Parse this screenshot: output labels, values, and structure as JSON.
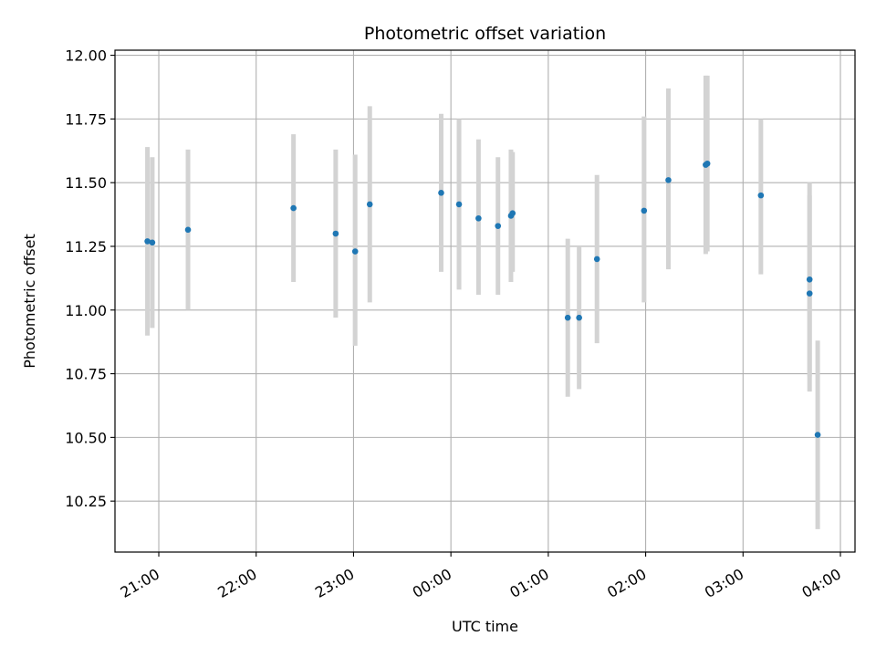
{
  "chart_data": {
    "type": "scatter",
    "title": "Photometric offset variation",
    "xlabel": "UTC time",
    "ylabel": "Photometric offset",
    "x_axis": "time",
    "x_range": [
      "20:33",
      "04:09"
    ],
    "ylim": [
      10.05,
      12.02
    ],
    "yticks": [
      10.25,
      10.5,
      10.75,
      11.0,
      11.25,
      11.5,
      11.75,
      12.0
    ],
    "ytick_labels": [
      "10.25",
      "10.50",
      "10.75",
      "11.00",
      "11.25",
      "11.50",
      "11.75",
      "12.00"
    ],
    "xticks": [
      "21:00",
      "22:00",
      "23:00",
      "00:00",
      "01:00",
      "02:00",
      "03:00",
      "04:00"
    ],
    "grid": true,
    "colors": {
      "points": "#1f77b4",
      "errorbars": "#d3d3d3",
      "grid": "#b0b0b0"
    },
    "points": [
      {
        "t": "20:53",
        "y": 11.27,
        "lo": 10.9,
        "hi": 11.64
      },
      {
        "t": "20:56",
        "y": 11.265,
        "lo": 10.93,
        "hi": 11.6
      },
      {
        "t": "21:18",
        "y": 11.315,
        "lo": 11.0,
        "hi": 11.63
      },
      {
        "t": "22:23",
        "y": 11.4,
        "lo": 11.11,
        "hi": 11.69
      },
      {
        "t": "22:49",
        "y": 11.3,
        "lo": 10.97,
        "hi": 11.63
      },
      {
        "t": "23:01",
        "y": 11.23,
        "lo": 10.86,
        "hi": 11.61
      },
      {
        "t": "23:10",
        "y": 11.415,
        "lo": 11.03,
        "hi": 11.8
      },
      {
        "t": "23:54",
        "y": 11.46,
        "lo": 11.15,
        "hi": 11.77
      },
      {
        "t": "00:05",
        "y": 11.415,
        "lo": 11.08,
        "hi": 11.75
      },
      {
        "t": "00:17",
        "y": 11.36,
        "lo": 11.06,
        "hi": 11.67
      },
      {
        "t": "00:29",
        "y": 11.33,
        "lo": 11.06,
        "hi": 11.6
      },
      {
        "t": "00:37",
        "y": 11.37,
        "lo": 11.11,
        "hi": 11.63
      },
      {
        "t": "00:38",
        "y": 11.38,
        "lo": 11.15,
        "hi": 11.62
      },
      {
        "t": "01:12",
        "y": 10.97,
        "lo": 10.66,
        "hi": 11.28
      },
      {
        "t": "01:19",
        "y": 10.97,
        "lo": 10.69,
        "hi": 11.25
      },
      {
        "t": "01:30",
        "y": 11.2,
        "lo": 10.87,
        "hi": 11.53
      },
      {
        "t": "01:59",
        "y": 11.39,
        "lo": 11.03,
        "hi": 11.76
      },
      {
        "t": "02:14",
        "y": 11.51,
        "lo": 11.16,
        "hi": 11.87
      },
      {
        "t": "02:37",
        "y": 11.57,
        "lo": 11.22,
        "hi": 11.92
      },
      {
        "t": "02:38",
        "y": 11.575,
        "lo": 11.23,
        "hi": 11.92
      },
      {
        "t": "03:11",
        "y": 11.45,
        "lo": 11.14,
        "hi": 11.75
      },
      {
        "t": "03:41",
        "y": 11.12,
        "lo": 10.74,
        "hi": 11.5
      },
      {
        "t": "03:41",
        "y": 11.065,
        "lo": 10.68,
        "hi": 11.45
      },
      {
        "t": "03:46",
        "y": 10.51,
        "lo": 10.14,
        "hi": 10.88
      }
    ]
  }
}
